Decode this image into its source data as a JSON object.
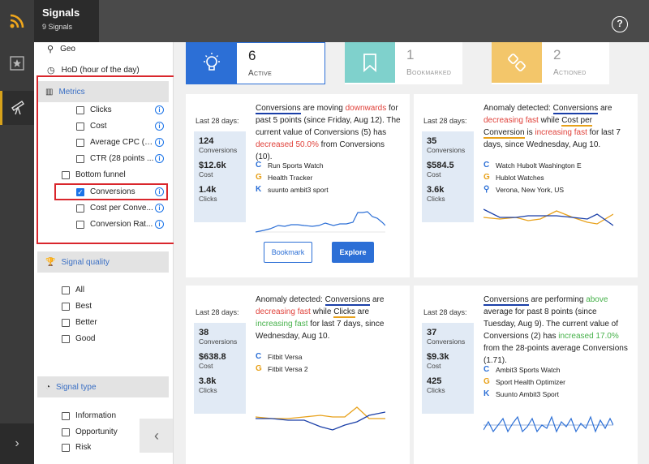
{
  "app": {
    "title": "Signals",
    "subtitle": "9 Signals"
  },
  "header": {
    "help_label": "?"
  },
  "sidebar": {
    "top_items": [
      {
        "label": "Geo"
      },
      {
        "label": "HoD (hour of the day)"
      }
    ],
    "metrics": {
      "label": "Metrics",
      "items": [
        {
          "label": "Clicks",
          "checked": false
        },
        {
          "label": "Cost",
          "checked": false
        },
        {
          "label": "Average CPC (2...",
          "checked": false
        },
        {
          "label": "CTR (28 points ...",
          "checked": false
        }
      ],
      "bottom_funnel": {
        "label": "Bottom funnel",
        "checked": false,
        "items": [
          {
            "label": "Conversions",
            "checked": true
          },
          {
            "label": "Cost per Conve...",
            "checked": false
          },
          {
            "label": "Conversion Rat...",
            "checked": false
          }
        ]
      }
    },
    "signal_quality": {
      "label": "Signal quality",
      "items": [
        {
          "label": "All"
        },
        {
          "label": "Best"
        },
        {
          "label": "Better"
        },
        {
          "label": "Good"
        }
      ]
    },
    "signal_type": {
      "label": "Signal type",
      "items": [
        {
          "label": "Information"
        },
        {
          "label": "Opportunity"
        },
        {
          "label": "Risk"
        }
      ]
    }
  },
  "stats": [
    {
      "count": "6",
      "label": "Active",
      "color": "#2c6fd6"
    },
    {
      "count": "1",
      "label": "Bookmarked",
      "color": "#7fd1cc"
    },
    {
      "count": "2",
      "label": "Actioned",
      "color": "#f3c66a"
    }
  ],
  "cards": [
    {
      "period": "Last 28 days:",
      "mini": [
        {
          "value": "124",
          "label": "Conversions"
        },
        {
          "value": "$12.6k",
          "label": "Cost"
        },
        {
          "value": "1.4k",
          "label": "Clicks"
        }
      ],
      "desc": {
        "metric": "Conversions",
        "t1": " are moving ",
        "dir": "downwards",
        "t2": " for past 5 points (since Friday, Aug 12). The current value of Conversions (5) has ",
        "change": "decreased 50.0%",
        "t3": " from Conversions (10)."
      },
      "sources": [
        {
          "icon": "C",
          "color": "#2c6fd6",
          "label": "Run Sports Watch"
        },
        {
          "icon": "G",
          "color": "#e8a11a",
          "label": "Health Tracker"
        },
        {
          "icon": "K",
          "color": "#2c6fd6",
          "label": "suunto ambit3 sport"
        }
      ],
      "bookmark_label": "Bookmark",
      "explore_label": "Explore"
    },
    {
      "period": "Last 28 days:",
      "mini": [
        {
          "value": "35",
          "label": "Conversions"
        },
        {
          "value": "$584.5",
          "label": "Cost"
        },
        {
          "value": "3.6k",
          "label": "Clicks"
        }
      ],
      "desc": {
        "t0": "Anomaly detected: ",
        "metric": "Conversions",
        "t1": " are ",
        "dir": "decreasing fast",
        "t2": " while ",
        "metric2": "Cost per Conversion",
        "t3": " is ",
        "dir2": "increasing fast",
        "t4": " for last 7 days, since Wednesday, Aug 10."
      },
      "sources": [
        {
          "icon": "C",
          "color": "#2c6fd6",
          "label": "Watch Hubolt Washington E"
        },
        {
          "icon": "G",
          "color": "#e8a11a",
          "label": "Hublot Watches"
        },
        {
          "icon": "pin",
          "color": "#2c6fd6",
          "label": "Verona, New York, US"
        }
      ]
    },
    {
      "period": "Last 28 days:",
      "mini": [
        {
          "value": "38",
          "label": "Conversions"
        },
        {
          "value": "$638.8",
          "label": "Cost"
        },
        {
          "value": "3.8k",
          "label": "Clicks"
        }
      ],
      "desc": {
        "t0": "Anomaly detected: ",
        "metric": "Conversions",
        "t1": " are ",
        "dir": "decreasing fast",
        "t2": " while ",
        "metric2": "Clicks",
        "t3": " are ",
        "dir2": "increasing fast",
        "t4": " for last 7 days, since Wednesday, Aug 10."
      },
      "sources": [
        {
          "icon": "C",
          "color": "#2c6fd6",
          "label": "Fitbit Versa"
        },
        {
          "icon": "G",
          "color": "#e8a11a",
          "label": "Fitbit Versa 2"
        }
      ]
    },
    {
      "period": "Last 28 days:",
      "mini": [
        {
          "value": "37",
          "label": "Conversions"
        },
        {
          "value": "$9.3k",
          "label": "Cost"
        },
        {
          "value": "425",
          "label": "Clicks"
        }
      ],
      "desc": {
        "metric": "Conversions",
        "t1": " are performing ",
        "dir": "above",
        "t2": " average for past 8 points (since Tuesday, Aug 9). The current value of Conversions (2) has ",
        "change": "increased 17.0%",
        "t3": " from the 28-points average Conversions (1.71)."
      },
      "sources": [
        {
          "icon": "C",
          "color": "#2c6fd6",
          "label": "Ambit3 Sports Watch"
        },
        {
          "icon": "G",
          "color": "#e8a11a",
          "label": "Sport Health Optimizer"
        },
        {
          "icon": "K",
          "color": "#2c6fd6",
          "label": "Suunto Ambit3 Sport"
        }
      ]
    }
  ],
  "colors": {
    "accent": "#2c6fd6",
    "orange": "#e8a11a",
    "red_highlight": "#d9262c"
  }
}
